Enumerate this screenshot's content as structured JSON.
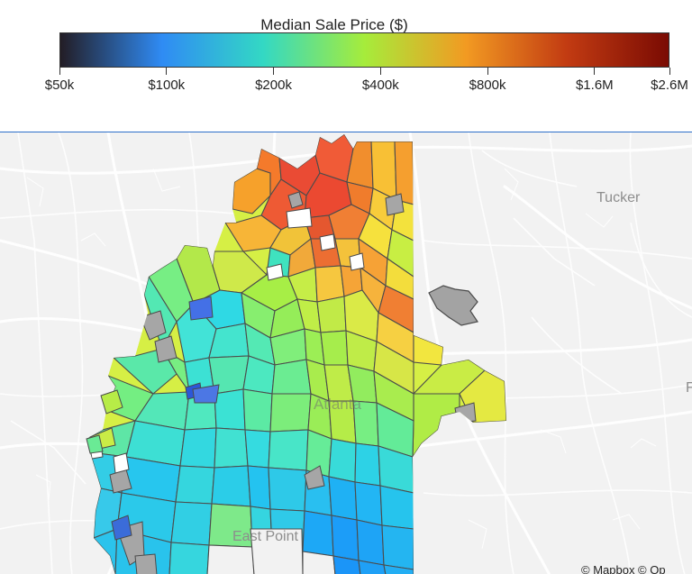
{
  "legend": {
    "title": "Median Sale Price ($)",
    "ticks": [
      {
        "label": "$50k",
        "value": 50000
      },
      {
        "label": "$100k",
        "value": 100000
      },
      {
        "label": "$200k",
        "value": 200000
      },
      {
        "label": "$400k",
        "value": 400000
      },
      {
        "label": "$800k",
        "value": 800000
      },
      {
        "label": "$1.6M",
        "value": 1600000
      },
      {
        "label": "$2.6M",
        "value": 2600000
      }
    ],
    "scale": "log",
    "colors": [
      "#231d25",
      "#2f8bf4",
      "#33d8c4",
      "#a6ec3b",
      "#f29a22",
      "#c23b12",
      "#7a0b03"
    ]
  },
  "map": {
    "places": {
      "tucker": "Tucker",
      "east_point": "East Point",
      "atlanta": "Atlanta",
      "partial_right": "F"
    },
    "attribution": "© Mapbox © Op",
    "no_data_color": "#a9a9a9"
  }
}
